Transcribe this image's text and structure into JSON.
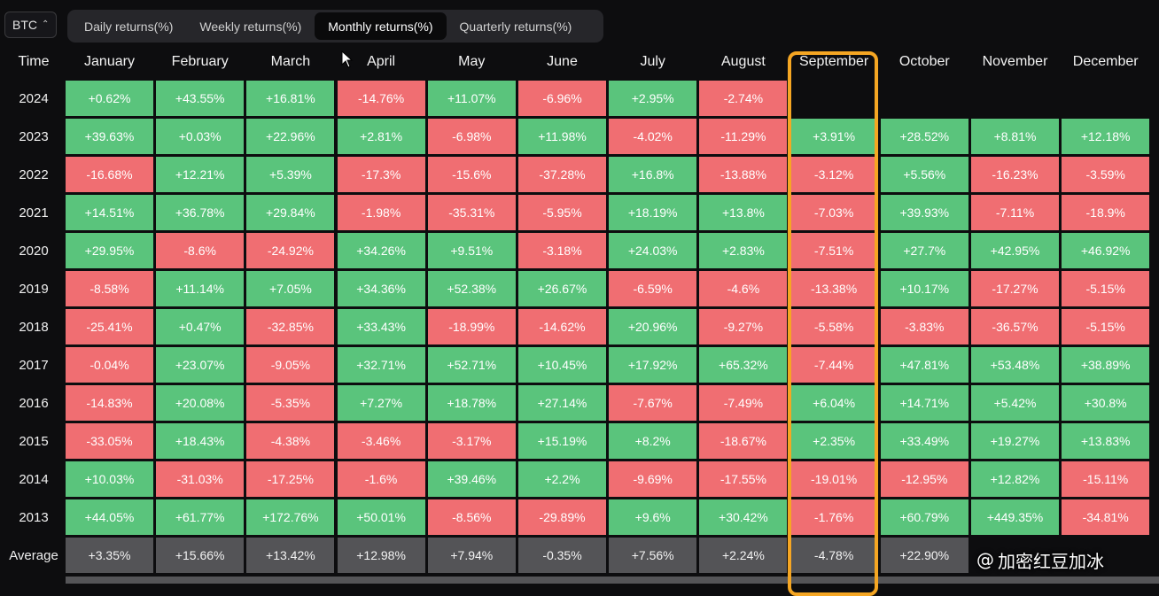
{
  "asset_selector": {
    "value": "BTC"
  },
  "tabs": [
    {
      "label": "Daily returns(%)",
      "active": false
    },
    {
      "label": "Weekly returns(%)",
      "active": false
    },
    {
      "label": "Monthly returns(%)",
      "active": true
    },
    {
      "label": "Quarterly returns(%)",
      "active": false
    }
  ],
  "table": {
    "row_header": "Time",
    "months": [
      "January",
      "February",
      "March",
      "April",
      "May",
      "June",
      "July",
      "August",
      "September",
      "October",
      "November",
      "December"
    ],
    "rows": [
      {
        "year": "2024",
        "values": [
          "+0.62%",
          "+43.55%",
          "+16.81%",
          "-14.76%",
          "+11.07%",
          "-6.96%",
          "+2.95%",
          "-2.74%",
          "",
          "",
          "",
          ""
        ]
      },
      {
        "year": "2023",
        "values": [
          "+39.63%",
          "+0.03%",
          "+22.96%",
          "+2.81%",
          "-6.98%",
          "+11.98%",
          "-4.02%",
          "-11.29%",
          "+3.91%",
          "+28.52%",
          "+8.81%",
          "+12.18%"
        ]
      },
      {
        "year": "2022",
        "values": [
          "-16.68%",
          "+12.21%",
          "+5.39%",
          "-17.3%",
          "-15.6%",
          "-37.28%",
          "+16.8%",
          "-13.88%",
          "-3.12%",
          "+5.56%",
          "-16.23%",
          "-3.59%"
        ]
      },
      {
        "year": "2021",
        "values": [
          "+14.51%",
          "+36.78%",
          "+29.84%",
          "-1.98%",
          "-35.31%",
          "-5.95%",
          "+18.19%",
          "+13.8%",
          "-7.03%",
          "+39.93%",
          "-7.11%",
          "-18.9%"
        ]
      },
      {
        "year": "2020",
        "values": [
          "+29.95%",
          "-8.6%",
          "-24.92%",
          "+34.26%",
          "+9.51%",
          "-3.18%",
          "+24.03%",
          "+2.83%",
          "-7.51%",
          "+27.7%",
          "+42.95%",
          "+46.92%"
        ]
      },
      {
        "year": "2019",
        "values": [
          "-8.58%",
          "+11.14%",
          "+7.05%",
          "+34.36%",
          "+52.38%",
          "+26.67%",
          "-6.59%",
          "-4.6%",
          "-13.38%",
          "+10.17%",
          "-17.27%",
          "-5.15%"
        ]
      },
      {
        "year": "2018",
        "values": [
          "-25.41%",
          "+0.47%",
          "-32.85%",
          "+33.43%",
          "-18.99%",
          "-14.62%",
          "+20.96%",
          "-9.27%",
          "-5.58%",
          "-3.83%",
          "-36.57%",
          "-5.15%"
        ]
      },
      {
        "year": "2017",
        "values": [
          "-0.04%",
          "+23.07%",
          "-9.05%",
          "+32.71%",
          "+52.71%",
          "+10.45%",
          "+17.92%",
          "+65.32%",
          "-7.44%",
          "+47.81%",
          "+53.48%",
          "+38.89%"
        ]
      },
      {
        "year": "2016",
        "values": [
          "-14.83%",
          "+20.08%",
          "-5.35%",
          "+7.27%",
          "+18.78%",
          "+27.14%",
          "-7.67%",
          "-7.49%",
          "+6.04%",
          "+14.71%",
          "+5.42%",
          "+30.8%"
        ]
      },
      {
        "year": "2015",
        "values": [
          "-33.05%",
          "+18.43%",
          "-4.38%",
          "-3.46%",
          "-3.17%",
          "+15.19%",
          "+8.2%",
          "-18.67%",
          "+2.35%",
          "+33.49%",
          "+19.27%",
          "+13.83%"
        ]
      },
      {
        "year": "2014",
        "values": [
          "+10.03%",
          "-31.03%",
          "-17.25%",
          "-1.6%",
          "+39.46%",
          "+2.2%",
          "-9.69%",
          "-17.55%",
          "-19.01%",
          "-12.95%",
          "+12.82%",
          "-15.11%"
        ]
      },
      {
        "year": "2013",
        "values": [
          "+44.05%",
          "+61.77%",
          "+172.76%",
          "+50.01%",
          "-8.56%",
          "-29.89%",
          "+9.6%",
          "+30.42%",
          "-1.76%",
          "+60.79%",
          "+449.35%",
          "-34.81%"
        ]
      }
    ],
    "average": {
      "label": "Average",
      "values": [
        "+3.35%",
        "+15.66%",
        "+13.42%",
        "+12.98%",
        "+7.94%",
        "-0.35%",
        "+7.56%",
        "+2.24%",
        "-4.78%",
        "+22.90%",
        "",
        ""
      ]
    }
  },
  "highlighted_month": "September",
  "colors": {
    "positive": "#5ac47c",
    "negative": "#f06e72",
    "average": "#545457",
    "highlight": "#f5a623",
    "background": "#0d0d0f"
  },
  "watermark": {
    "text": "加密红豆加冰"
  }
}
